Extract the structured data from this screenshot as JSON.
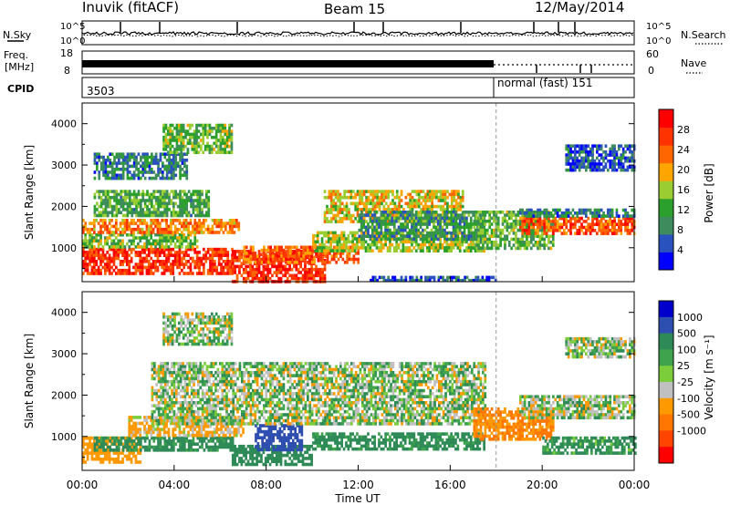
{
  "header": {
    "station": "Inuvik (fitACF)",
    "beam": "Beam 15",
    "date": "12/May/2014"
  },
  "panels": {
    "nsky": {
      "label": "N.Sky",
      "ticks": [
        "10^5",
        "10^0"
      ]
    },
    "nsearch": {
      "label": "N.Search",
      "ticks": [
        "10^5",
        "10^0"
      ]
    },
    "freq": {
      "label_line1": "Freq.",
      "label_line2": "[MHz]",
      "ticks": [
        "18",
        "8"
      ]
    },
    "nave": {
      "label": "Nave",
      "ticks": [
        "60",
        "0"
      ]
    },
    "cpid": {
      "label": "CPID",
      "segments": [
        {
          "text": "3503",
          "start": "00:00"
        },
        {
          "text": "normal (fast) 151",
          "start": "18:00"
        }
      ]
    }
  },
  "colors": {
    "power": [
      "#0000ff",
      "#2a52be",
      "#3e8c5e",
      "#2ca02c",
      "#9acd32",
      "#ffa500",
      "#ff6600",
      "#ff3300",
      "#ff0000"
    ],
    "velocity": [
      "#0000cc",
      "#2f4fb0",
      "#2e8b57",
      "#3fa34d",
      "#7ccd3c",
      "#c0c0c0",
      "#ff9900",
      "#ff7700",
      "#ff4400",
      "#ff0000"
    ],
    "ground_scatter": "#c0c0c0"
  },
  "chart_data": [
    {
      "type": "heatmap",
      "title": "",
      "xlabel": "Time UT",
      "ylabel": "Slant Range [km]",
      "xlim": [
        "00:00",
        "24:00"
      ],
      "ylim": [
        180,
        4500
      ],
      "x_ticks": [
        "00:00",
        "04:00",
        "08:00",
        "12:00",
        "16:00",
        "20:00",
        "00:00"
      ],
      "y_ticks": [
        1000,
        2000,
        3000,
        4000
      ],
      "colorbar": {
        "label": "Power [dB]",
        "ticks": [
          4,
          8,
          12,
          16,
          20,
          24,
          28
        ],
        "range": [
          0,
          32
        ]
      },
      "regions": [
        {
          "t0": 0.0,
          "t1": 6.5,
          "r0": 350,
          "r1": 1000,
          "value": 27
        },
        {
          "t0": 0.0,
          "t1": 5.0,
          "r0": 1050,
          "r1": 1350,
          "value": 14
        },
        {
          "t0": 0.0,
          "t1": 6.8,
          "r0": 1400,
          "r1": 1700,
          "value": 22
        },
        {
          "t0": 0.5,
          "t1": 5.5,
          "r0": 1750,
          "r1": 2400,
          "value": 12
        },
        {
          "t0": 6.5,
          "t1": 10.5,
          "r0": 180,
          "r1": 950,
          "value": 28
        },
        {
          "t0": 7.0,
          "t1": 12.0,
          "r0": 650,
          "r1": 1050,
          "value": 24
        },
        {
          "t0": 10.0,
          "t1": 17.5,
          "r0": 900,
          "r1": 1400,
          "value": 16
        },
        {
          "t0": 10.5,
          "t1": 16.5,
          "r0": 1650,
          "r1": 2400,
          "value": 18
        },
        {
          "t0": 12.0,
          "t1": 17.5,
          "r0": 1200,
          "r1": 1900,
          "value": 10
        },
        {
          "t0": 17.0,
          "t1": 20.5,
          "r0": 1000,
          "r1": 1900,
          "value": 13
        },
        {
          "t0": 19.0,
          "t1": 24.0,
          "r0": 1350,
          "r1": 1750,
          "value": 25
        },
        {
          "t0": 19.0,
          "t1": 24.0,
          "r0": 1750,
          "r1": 1950,
          "value": 8
        },
        {
          "t0": 0.5,
          "t1": 4.5,
          "r0": 2700,
          "r1": 3300,
          "value": 8
        },
        {
          "t0": 3.5,
          "t1": 6.5,
          "r0": 3300,
          "r1": 4000,
          "value": 14
        },
        {
          "t0": 21.0,
          "t1": 24.0,
          "r0": 2900,
          "r1": 3500,
          "value": 6
        },
        {
          "t0": 12.5,
          "t1": 18.0,
          "r0": 200,
          "r1": 320,
          "value": 6
        }
      ]
    },
    {
      "type": "heatmap",
      "title": "",
      "xlabel": "Time UT",
      "ylabel": "Slant Range [km]",
      "xlim": [
        "00:00",
        "24:00"
      ],
      "ylim": [
        180,
        4500
      ],
      "x_ticks": [
        "00:00",
        "04:00",
        "08:00",
        "12:00",
        "16:00",
        "20:00",
        "00:00"
      ],
      "y_ticks": [
        1000,
        2000,
        3000,
        4000
      ],
      "colorbar": {
        "label": "Velocity [m s⁻¹]",
        "ticks": [
          1000,
          500,
          100,
          25,
          -25,
          -100,
          -500,
          -1000
        ]
      },
      "regions": [
        {
          "t0": 0.0,
          "t1": 2.5,
          "r0": 400,
          "r1": 1000,
          "value": -300
        },
        {
          "t0": 0.5,
          "t1": 6.5,
          "r0": 700,
          "r1": 1000,
          "value": 200
        },
        {
          "t0": 2.0,
          "t1": 7.0,
          "r0": 1000,
          "r1": 1500,
          "value": -150
        },
        {
          "t0": 6.5,
          "t1": 10.0,
          "r0": 350,
          "r1": 800,
          "value": 300
        },
        {
          "t0": 7.5,
          "t1": 9.5,
          "r0": 700,
          "r1": 1300,
          "value": 800
        },
        {
          "t0": 10.0,
          "t1": 17.5,
          "r0": 700,
          "r1": 1100,
          "value": 200
        },
        {
          "t0": 3.0,
          "t1": 17.5,
          "r0": 1300,
          "r1": 2800,
          "value": 0
        },
        {
          "t0": 17.0,
          "t1": 20.5,
          "r0": 900,
          "r1": 1700,
          "value": -500
        },
        {
          "t0": 19.0,
          "t1": 24.0,
          "r0": 1450,
          "r1": 2000,
          "value": 0
        },
        {
          "t0": 20.0,
          "t1": 24.0,
          "r0": 600,
          "r1": 1000,
          "value": 150
        },
        {
          "t0": 3.5,
          "t1": 6.5,
          "r0": 3200,
          "r1": 4000,
          "value": 0
        },
        {
          "t0": 21.0,
          "t1": 24.0,
          "r0": 2900,
          "r1": 3400,
          "value": 0
        }
      ]
    }
  ]
}
